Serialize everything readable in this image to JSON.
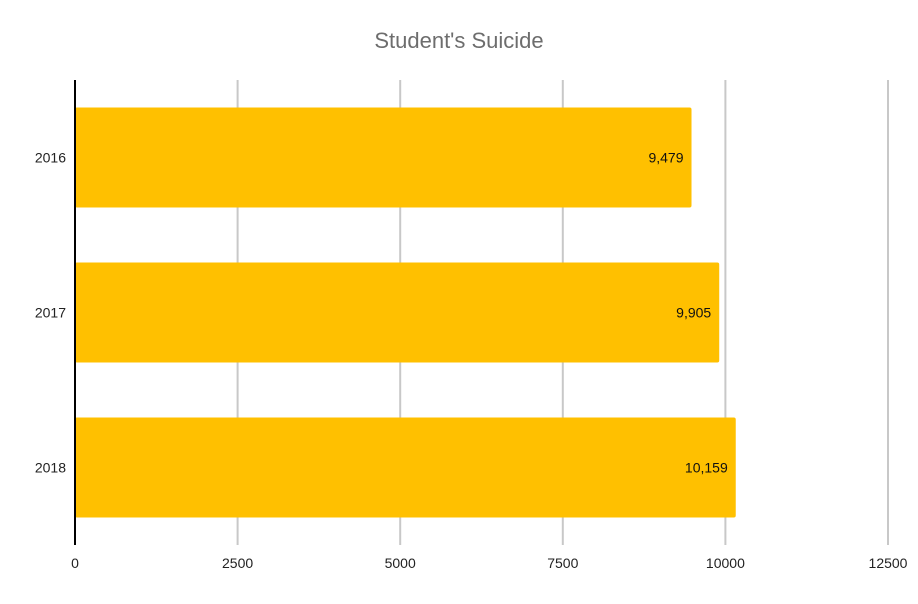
{
  "chart_data": {
    "type": "bar",
    "orientation": "horizontal",
    "title": "Student's Suicide",
    "xlabel": "",
    "ylabel": "",
    "categories": [
      "2016",
      "2017",
      "2018"
    ],
    "values": [
      9479,
      9905,
      10159
    ],
    "data_labels": [
      "9,479",
      "9,905",
      "10,159"
    ],
    "xlim": [
      0,
      12500
    ],
    "x_ticks": [
      0,
      2500,
      5000,
      7500,
      10000,
      12500
    ],
    "x_tick_labels": [
      "0",
      "2500",
      "5000",
      "7500",
      "10000",
      "12500"
    ],
    "grid": true,
    "legend": "none",
    "colors": {
      "bar": "#FFC000",
      "grid": "#c8c8c8",
      "axis": "#000000"
    }
  }
}
